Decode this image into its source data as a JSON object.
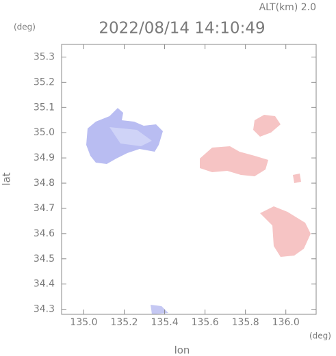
{
  "chart_data": {
    "type": "map",
    "subtitle": "ALT(km) 2.0",
    "title": "2022/08/14 14:10:49",
    "y_unit": "(deg)",
    "x_unit": "(deg)",
    "ylabel": "lat",
    "xlabel": "lon",
    "xlim": [
      134.89,
      136.15
    ],
    "ylim": [
      34.28,
      35.35
    ],
    "xticks": [
      {
        "value": 135.0,
        "label": "135.0"
      },
      {
        "value": 135.2,
        "label": "135.2"
      },
      {
        "value": 135.4,
        "label": "135.4"
      },
      {
        "value": 135.6,
        "label": "135.6"
      },
      {
        "value": 135.8,
        "label": "135.8"
      },
      {
        "value": 136.0,
        "label": "136.0"
      }
    ],
    "yticks": [
      {
        "value": 34.3,
        "label": "34.3"
      },
      {
        "value": 34.4,
        "label": "34.4"
      },
      {
        "value": 34.5,
        "label": "34.5"
      },
      {
        "value": 34.6,
        "label": "34.6"
      },
      {
        "value": 34.7,
        "label": "34.7"
      },
      {
        "value": 34.8,
        "label": "34.8"
      },
      {
        "value": 34.9,
        "label": "34.9"
      },
      {
        "value": 35.0,
        "label": "35.0"
      },
      {
        "value": 35.1,
        "label": "35.1"
      },
      {
        "value": 35.2,
        "label": "35.2"
      },
      {
        "value": 35.3,
        "label": "35.3"
      }
    ]
  }
}
